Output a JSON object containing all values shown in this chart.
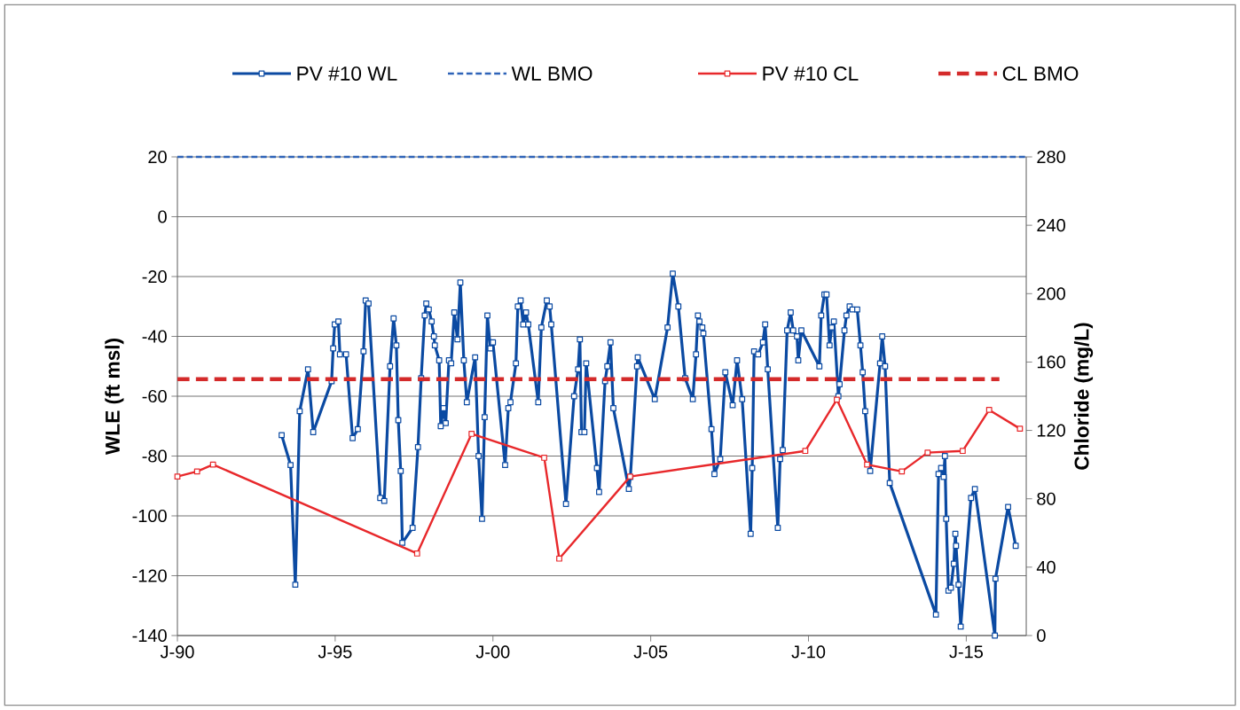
{
  "chart_data": {
    "type": "line",
    "ylabel": "WLE (ft msl)",
    "y2label": "Chloride (mg/L)",
    "xlim": [
      "1990-01-01",
      "2016-11-25"
    ],
    "xticks": [
      {
        "value": "1990-01-01",
        "label": "J-90"
      },
      {
        "value": "1995-01-01",
        "label": "J-95"
      },
      {
        "value": "2000-01-01",
        "label": "J-00"
      },
      {
        "value": "2005-01-01",
        "label": "J-05"
      },
      {
        "value": "2010-01-01",
        "label": "J-10"
      },
      {
        "value": "2015-01-01",
        "label": "J-15"
      }
    ],
    "ylim": [
      -140,
      20
    ],
    "yticks": [
      -140,
      -120,
      -100,
      -80,
      -60,
      -40,
      -20,
      0,
      20
    ],
    "y2lim": [
      0,
      280
    ],
    "y2ticks": [
      0,
      40,
      80,
      120,
      160,
      200,
      240,
      280
    ],
    "grid": "y",
    "legend": "top",
    "series": [
      {
        "name": "PV #10 WL",
        "color": "#0b4aa2",
        "marker": "square",
        "line_style": "solid",
        "x": [
          "1993-04-22",
          "1993-08-03",
          "1993-09-27",
          "1993-11-17",
          "1994-02-21",
          "1994-04-22",
          "1994-11-21",
          "1994-12-09",
          "1994-12-27",
          "1995-02-07",
          "1995-02-25",
          "1995-05-07",
          "1995-07-22",
          "1995-09-20",
          "1995-11-25",
          "1995-12-20",
          "1996-01-22",
          "1996-06-05",
          "1996-07-22",
          "1996-09-27",
          "1996-11-07",
          "1996-12-09",
          "1997-01-01",
          "1997-01-29",
          "1997-02-17",
          "1997-06-16",
          "1997-08-17",
          "1997-09-23",
          "1997-11-03",
          "1997-11-21",
          "1997-12-20",
          "1998-01-22",
          "1998-02-17",
          "1998-02-28",
          "1998-04-19",
          "1998-05-07",
          "1998-06-09",
          "1998-07-04",
          "1998-08-10",
          "1998-09-05",
          "1998-10-11",
          "1998-11-17",
          "1998-12-20",
          "1999-01-29",
          "1999-03-05",
          "1999-06-09",
          "1999-07-19",
          "1999-08-28",
          "1999-09-27",
          "1999-10-29",
          "1999-12-02",
          "2000-01-01",
          "2000-05-21",
          "2000-06-27",
          "2000-07-22",
          "2000-09-23",
          "2000-10-15",
          "2000-11-17",
          "2000-12-16",
          "2001-01-19",
          "2001-02-14",
          "2001-06-09",
          "2001-07-15",
          "2001-09-16",
          "2001-10-19",
          "2001-11-07",
          "2002-04-26",
          "2002-07-29",
          "2002-09-13",
          "2002-10-04",
          "2002-10-22",
          "2002-11-25",
          "2002-12-16",
          "2003-04-19",
          "2003-05-14",
          "2003-07-22",
          "2003-08-17",
          "2003-09-23",
          "2003-10-26",
          "2004-04-22",
          "2004-05-10",
          "2004-07-26",
          "2004-08-03",
          "2005-02-17",
          "2005-07-15",
          "2005-09-13",
          "2005-11-17",
          "2006-02-03",
          "2006-05-03",
          "2006-06-09",
          "2006-07-01",
          "2006-07-19",
          "2006-08-21",
          "2006-09-02",
          "2006-12-05",
          "2007-01-08",
          "2007-03-16",
          "2007-05-14",
          "2007-08-07",
          "2007-09-27",
          "2007-11-25",
          "2008-03-02",
          "2008-03-20",
          "2008-04-11",
          "2008-05-28",
          "2008-07-22",
          "2008-08-17",
          "2008-09-16",
          "2009-01-11",
          "2009-02-07",
          "2009-03-09",
          "2009-04-29",
          "2009-06-09",
          "2009-07-08",
          "2009-08-21",
          "2009-09-05",
          "2009-10-11",
          "2010-05-07",
          "2010-05-28",
          "2010-07-04",
          "2010-07-29",
          "2010-09-02",
          "2010-09-27",
          "2010-10-22",
          "2010-12-13",
          "2010-12-27",
          "2011-02-21",
          "2011-03-16",
          "2011-04-22",
          "2011-05-25",
          "2011-07-19",
          "2011-08-25",
          "2011-09-20",
          "2011-10-19",
          "2011-12-16",
          "2012-04-08",
          "2012-05-03",
          "2012-06-05",
          "2012-07-29",
          "2014-01-15",
          "2014-02-14",
          "2014-03-16",
          "2014-04-15",
          "2014-04-29",
          "2014-05-14",
          "2014-06-09",
          "2014-07-08",
          "2014-08-10",
          "2014-08-28",
          "2014-09-05",
          "2014-10-04",
          "2014-10-29",
          "2015-02-25",
          "2015-04-11",
          "2015-11-28",
          "2015-12-05",
          "2016-04-29",
          "2016-07-26"
        ],
        "values": [
          -73,
          -83,
          -123,
          -65,
          -51,
          -72,
          -55,
          -44,
          -36,
          -35,
          -46,
          -46,
          -74,
          -71,
          -45,
          -28,
          -29,
          -94,
          -95,
          -50,
          -34,
          -43,
          -68,
          -85,
          -109,
          -104,
          -77,
          -54,
          -33,
          -29,
          -31,
          -35,
          -40,
          -43,
          -48,
          -70,
          -64,
          -69,
          -48,
          -49,
          -32,
          -41,
          -22,
          -48,
          -62,
          -47,
          -80,
          -101,
          -67,
          -33,
          -44,
          -42,
          -83,
          -64,
          -62,
          -49,
          -30,
          -28,
          -36,
          -32,
          -36,
          -62,
          -37,
          -28,
          -30,
          -36,
          -96,
          -60,
          -51,
          -41,
          -72,
          -72,
          -49,
          -84,
          -92,
          -55,
          -50,
          -42,
          -64,
          -91,
          -87,
          -50,
          -47,
          -61,
          -37,
          -19,
          -30,
          -54,
          -61,
          -46,
          -33,
          -35,
          -37,
          -39,
          -71,
          -86,
          -81,
          -52,
          -63,
          -48,
          -61,
          -106,
          -84,
          -45,
          -46,
          -42,
          -36,
          -51,
          -104,
          -81,
          -78,
          -38,
          -32,
          -38,
          -40,
          -48,
          -38,
          -50,
          -33,
          -26,
          -26,
          -43,
          -37,
          -35,
          -60,
          -56,
          -38,
          -33,
          -30,
          -31,
          -31,
          -43,
          -52,
          -65,
          -85,
          -49,
          -40,
          -50,
          -89,
          -133,
          -86,
          -84,
          -87,
          -80,
          -101,
          -125,
          -124,
          -116,
          -106,
          -110,
          -123,
          -137,
          -94,
          -91,
          -140,
          -121,
          -97,
          -110
        ]
      },
      {
        "name": "WL BMO",
        "color": "#2e63b8",
        "marker": "none",
        "line_style": "dashed",
        "x": [
          "1990-01-01",
          "2016-11-25"
        ],
        "values": [
          20,
          20
        ]
      },
      {
        "name": "PV #10 CL",
        "color": "#e8282b",
        "marker": "square",
        "line_style": "solid",
        "axis": "y2",
        "x": [
          "1990-01-01",
          "1990-08-17",
          "1991-02-17",
          "1997-08-07",
          "1999-04-29",
          "2001-08-17",
          "2002-02-07",
          "2004-05-07",
          "2009-11-25",
          "2010-11-25",
          "2011-11-10",
          "2012-12-16",
          "2013-10-11",
          "2014-11-21",
          "2015-09-23",
          "2016-09-13"
        ],
        "values": [
          93,
          96,
          100,
          48,
          118,
          104,
          45,
          93,
          108,
          138,
          100,
          96,
          107,
          108,
          132,
          121
        ]
      },
      {
        "name": "CL BMO",
        "color": "#d42a2a",
        "marker": "none",
        "line_style": "dashed",
        "axis": "y2",
        "x": [
          "1990-01-01",
          "2016-01-19"
        ],
        "values": [
          150,
          150
        ]
      }
    ]
  }
}
